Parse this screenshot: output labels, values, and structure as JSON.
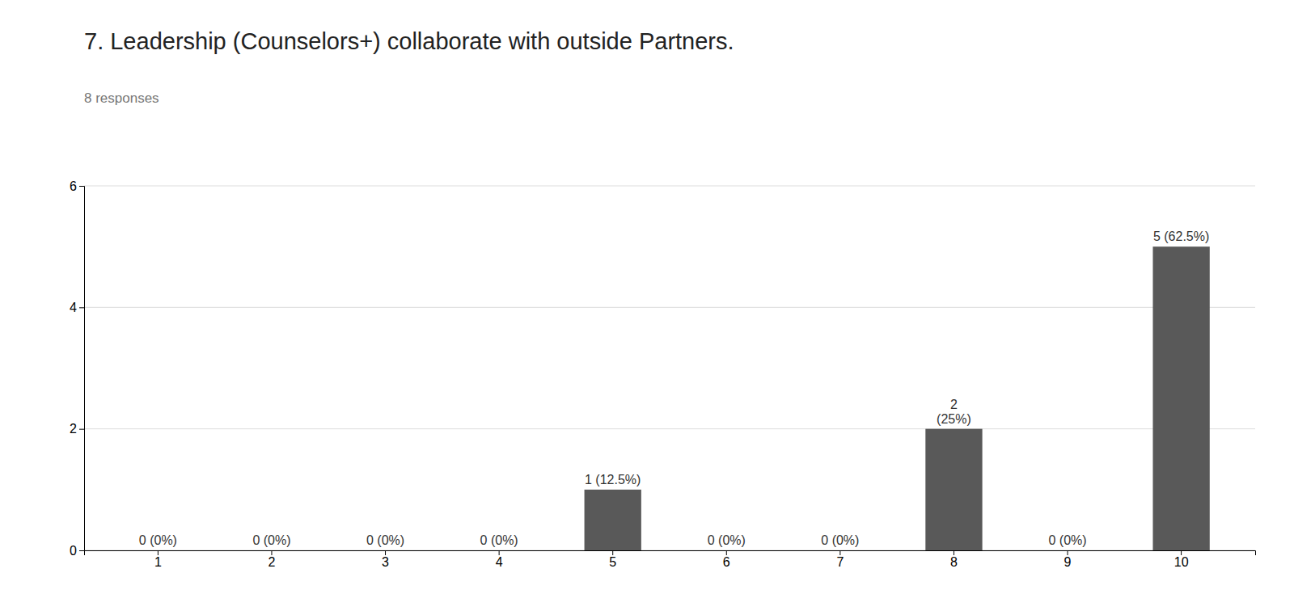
{
  "chart_data": {
    "type": "bar",
    "title": "7. Leadership (Counselors+) collaborate with outside Partners.",
    "subtitle": "8 responses",
    "categories": [
      1,
      2,
      3,
      4,
      5,
      6,
      7,
      8,
      9,
      10
    ],
    "values": [
      0,
      0,
      0,
      0,
      1,
      0,
      0,
      2,
      0,
      5
    ],
    "value_labels": [
      "0 (0%)",
      "0 (0%)",
      "0 (0%)",
      "0 (0%)",
      "1 (12.5%)",
      "0 (0%)",
      "0 (0%)",
      "2\n(25%)",
      "0 (0%)",
      "5 (62.5%)"
    ],
    "color": "#595959",
    "ylim": [
      0,
      6
    ],
    "yticks": [
      0,
      2,
      4,
      6
    ],
    "grid": true
  }
}
